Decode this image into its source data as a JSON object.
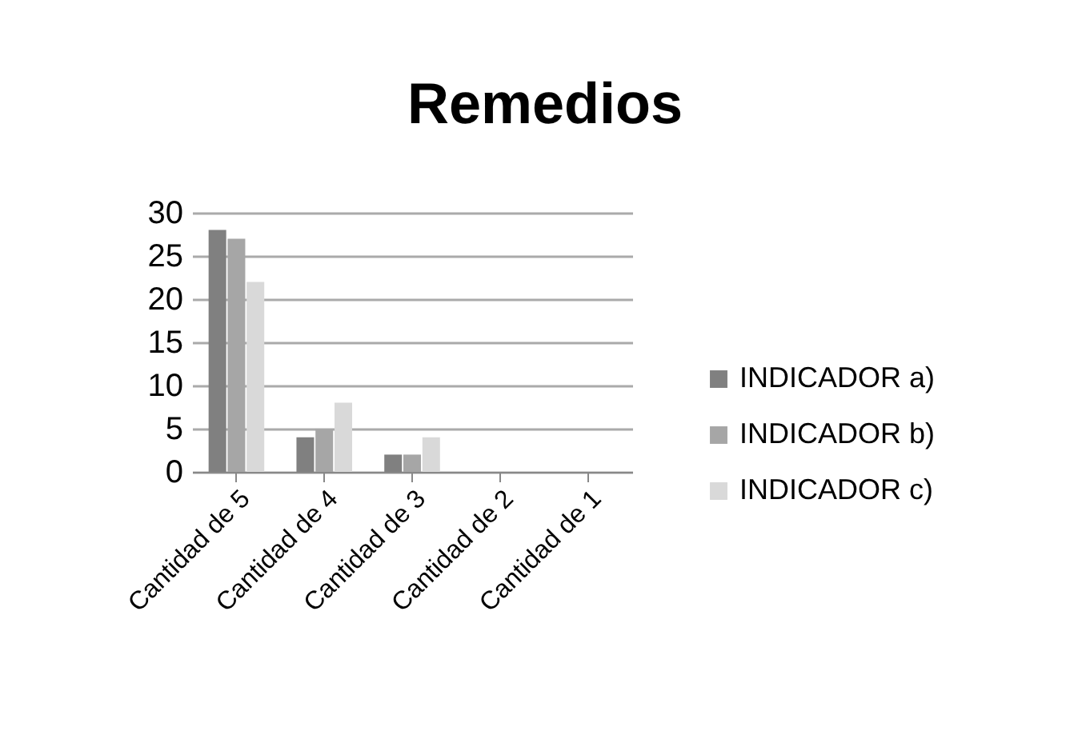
{
  "chart_data": {
    "type": "bar",
    "title": "Remedios",
    "categories": [
      "Cantidad de 5",
      "Cantidad de 4",
      "Cantidad de 3",
      "Cantidad de 2",
      "Cantidad de 1"
    ],
    "series": [
      {
        "name": "INDICADOR a)",
        "color": "#808080",
        "values": [
          28,
          4,
          2,
          0,
          0
        ]
      },
      {
        "name": "INDICADOR b)",
        "color": "#a6a6a6",
        "values": [
          27,
          5,
          2,
          0,
          0
        ]
      },
      {
        "name": "INDICADOR c)",
        "color": "#d9d9d9",
        "values": [
          22,
          8,
          4,
          0,
          0
        ]
      }
    ],
    "ylim": [
      0,
      30
    ],
    "yticks": [
      0,
      5,
      10,
      15,
      20,
      25,
      30
    ],
    "grid": "y",
    "legend": "right"
  }
}
